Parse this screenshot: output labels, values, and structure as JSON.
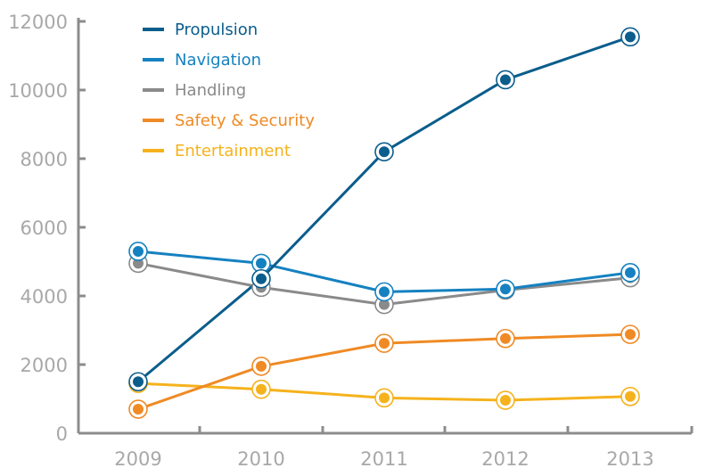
{
  "chart_data": {
    "type": "line",
    "title": "",
    "xlabel": "",
    "ylabel": "",
    "categories": [
      "2009",
      "2010",
      "2011",
      "2012",
      "2013"
    ],
    "ylim": [
      0,
      12000
    ],
    "yticks": [
      0,
      2000,
      4000,
      6000,
      8000,
      10000,
      12000
    ],
    "ytick_labels": [
      "0",
      "2000",
      "4000",
      "6000",
      "8000",
      "10000",
      "12000"
    ],
    "grid": false,
    "legend_position": "top-left",
    "series": [
      {
        "name": "Propulsion",
        "color": "#0b5d8c",
        "values": [
          1500,
          4500,
          8200,
          10300,
          11550
        ]
      },
      {
        "name": "Navigation",
        "color": "#1581c0",
        "values": [
          5300,
          4950,
          4120,
          4200,
          4680
        ]
      },
      {
        "name": "Handling",
        "color": "#8a8a8a",
        "values": [
          4950,
          4250,
          3750,
          4170,
          4530
        ]
      },
      {
        "name": "Safety & Security",
        "color": "#ef8a24",
        "values": [
          700,
          1950,
          2620,
          2760,
          2880
        ]
      },
      {
        "name": "Entertainment",
        "color": "#f5b21c",
        "values": [
          1450,
          1280,
          1030,
          960,
          1070
        ]
      }
    ]
  }
}
